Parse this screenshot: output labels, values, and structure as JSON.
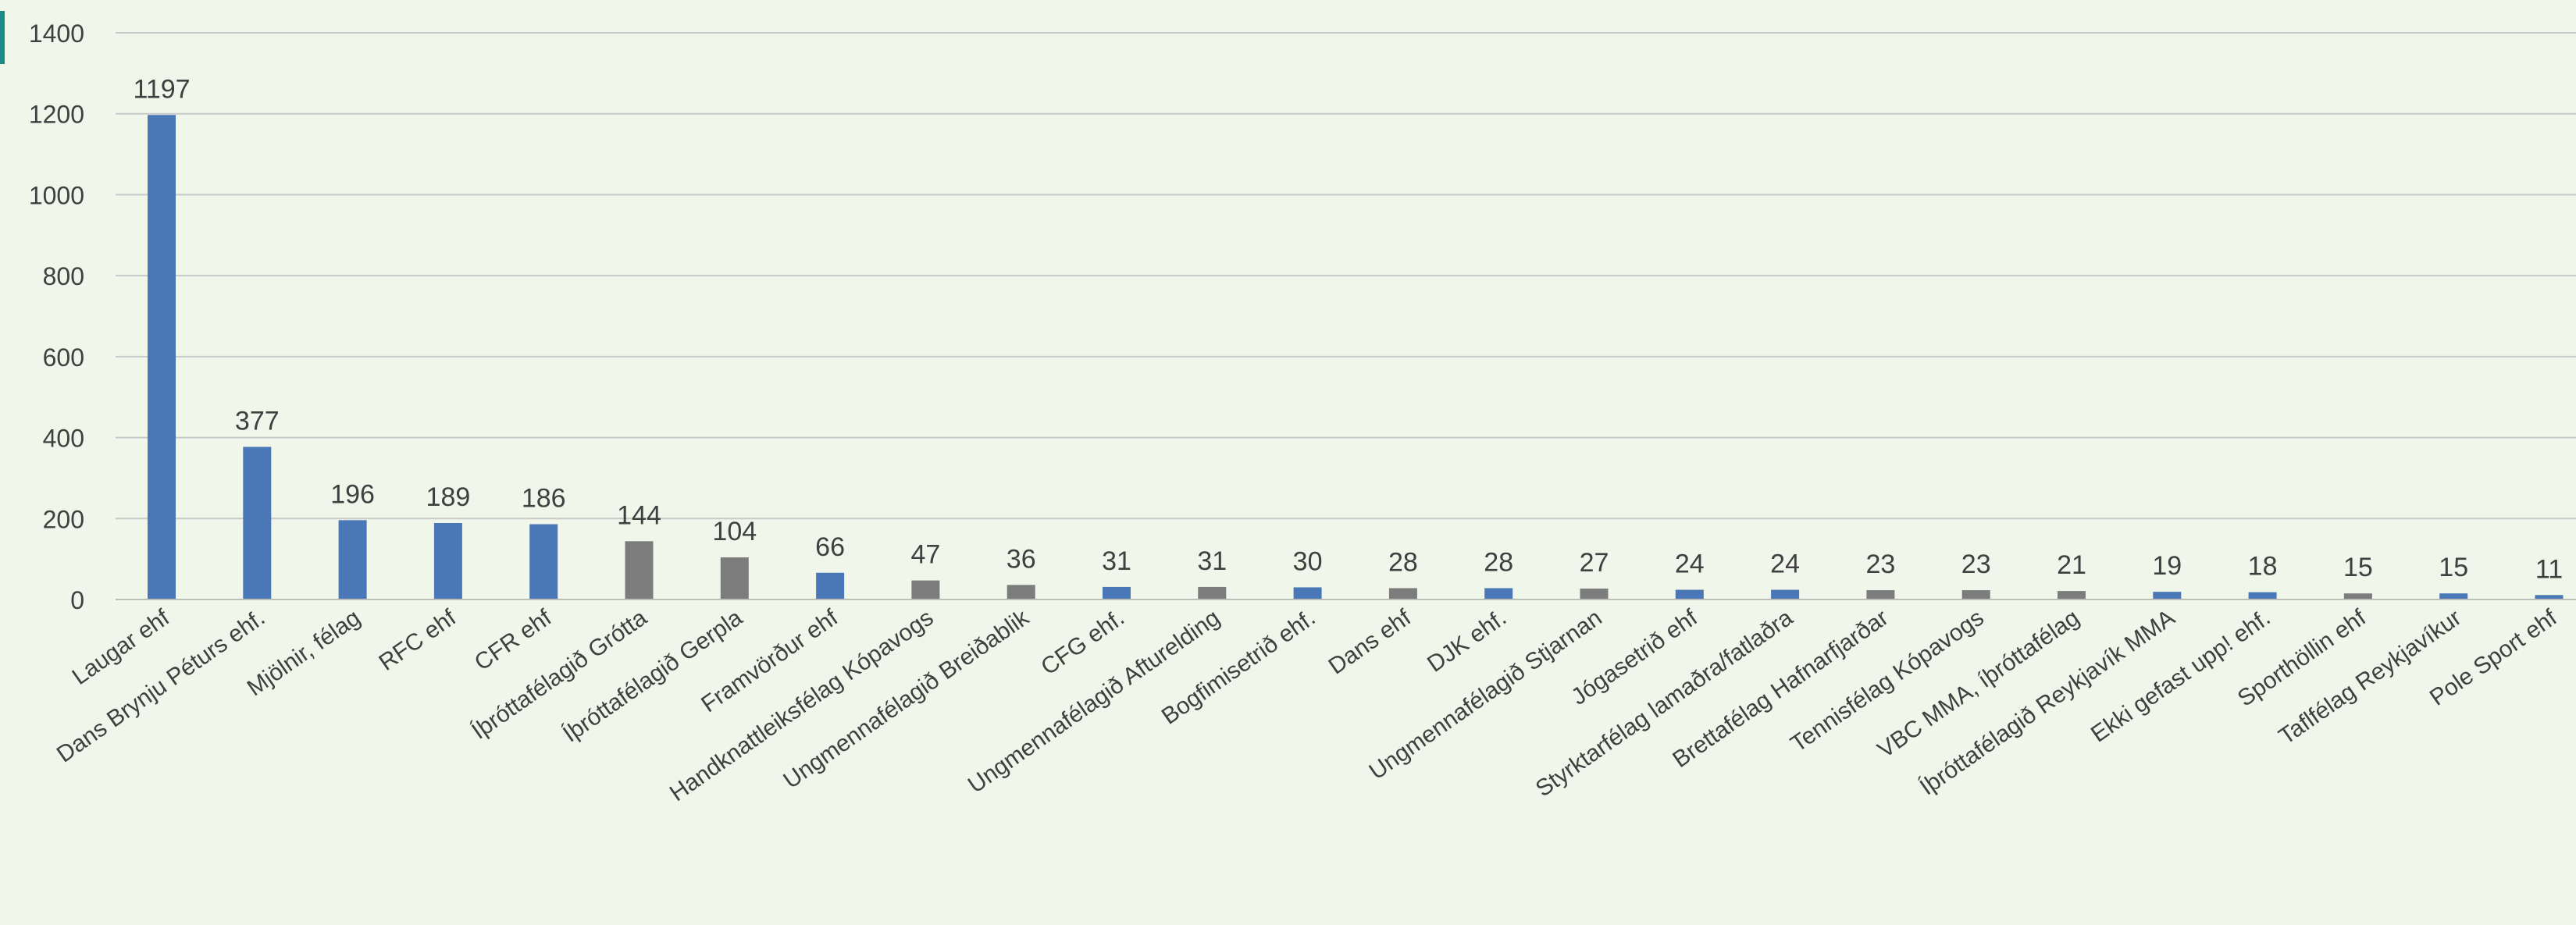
{
  "chart_data": {
    "type": "bar",
    "title": "",
    "xlabel": "",
    "ylabel": "",
    "ylim": [
      0,
      1400
    ],
    "yticks": [
      0,
      200,
      400,
      600,
      800,
      1000,
      1200,
      1400
    ],
    "grid": true,
    "legend": "none",
    "colors": {
      "blue": "#4a77b5",
      "gray": "#7c7c7c",
      "grid": "#c9c9c9",
      "axis": "#bdbdbd",
      "text": "#404040"
    },
    "categories": [
      "Laugar ehf",
      "Dans Brynju Péturs ehf.",
      "Mjölnir, félag",
      "RFC ehf",
      "CFR ehf",
      "Íþróttafélagið Grótta",
      "Íþróttafélagið Gerpla",
      "Framvörður ehf",
      "Handknattleiksfélag Kópavogs",
      "Ungmennafélagið Breiðablik",
      "CFG ehf.",
      "Ungmennafélagið Afturelding",
      "Bogfimisetrið ehf.",
      "Dans ehf",
      "DJK ehf.",
      "Ungmennafélagið Stjarnan",
      "Jógasetrið ehf",
      "Styrktarfélag lamaðra/fatlaðra",
      "Brettafélag Hafnarfjarðar",
      "Tennisfélag Kópavogs",
      "VBC MMA, íþróttafélag",
      "Íþróttafélagið Reykjavík MMA",
      "Ekki gefast upp! ehf.",
      "Sporthöllin ehf",
      "Taflfélag Reykjavíkur",
      "Pole Sport ehf"
    ],
    "values": [
      1197,
      377,
      196,
      189,
      186,
      144,
      104,
      66,
      47,
      36,
      31,
      31,
      30,
      28,
      28,
      27,
      24,
      24,
      23,
      23,
      21,
      19,
      18,
      15,
      15,
      11
    ],
    "bar_colors": [
      "blue",
      "blue",
      "blue",
      "blue",
      "blue",
      "gray",
      "gray",
      "blue",
      "gray",
      "gray",
      "blue",
      "gray",
      "blue",
      "gray",
      "blue",
      "gray",
      "blue",
      "blue",
      "gray",
      "gray",
      "gray",
      "blue",
      "blue",
      "gray",
      "blue",
      "blue"
    ]
  }
}
